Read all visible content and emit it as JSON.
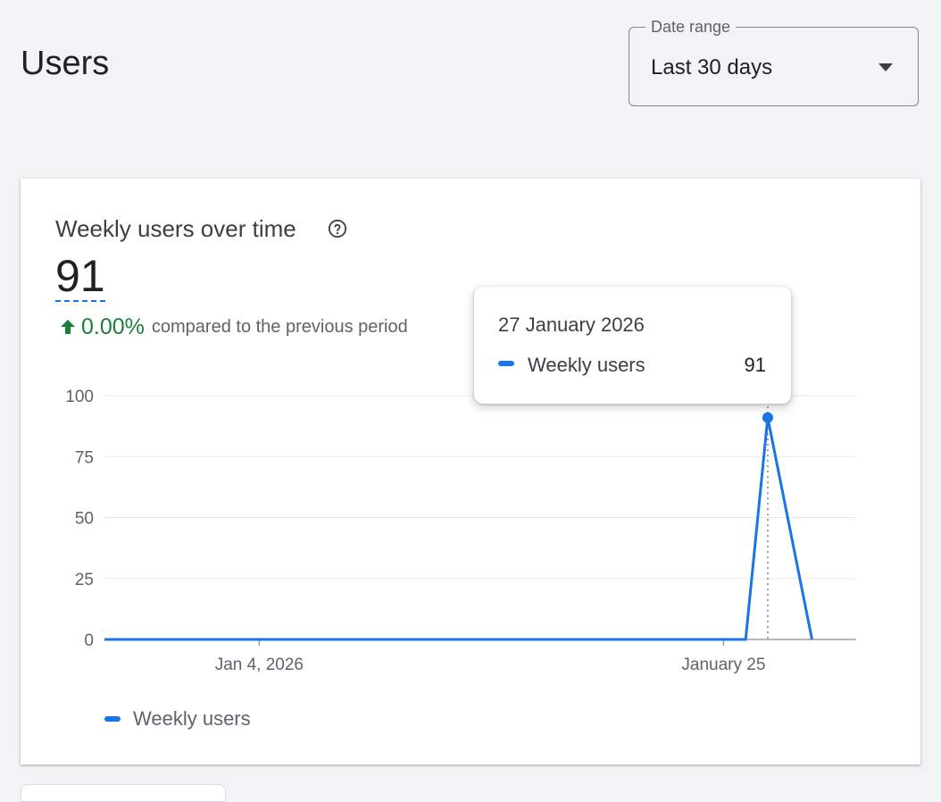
{
  "header": {
    "title": "Users"
  },
  "date_range": {
    "label": "Date range",
    "selected": "Last 30 days",
    "icon": "dropdown-arrow-icon"
  },
  "card": {
    "title": "Weekly users over time",
    "help_icon": "help-icon",
    "metric_value": "91",
    "change_value": "0.00%",
    "change_direction": "up",
    "comparison_text": "compared to the previous period",
    "colors": {
      "series": "#1a73e8",
      "positive": "#188038"
    }
  },
  "tooltip": {
    "date": "27 January 2026",
    "series_name": "Weekly users",
    "value": "91"
  },
  "legend": {
    "items": [
      "Weekly users"
    ]
  },
  "chart_data": {
    "type": "line",
    "title": "Weekly users over time",
    "xlabel": "",
    "ylabel": "",
    "ylim": [
      0,
      100
    ],
    "yticks": [
      0,
      25,
      50,
      75,
      100
    ],
    "x_domain": [
      "2025-12-28",
      "2026-01-31"
    ],
    "x_tick_labels": [
      {
        "date": "2026-01-04",
        "label": "Jan 4, 2026"
      },
      {
        "date": "2026-01-25",
        "label": "January 25"
      }
    ],
    "grid": true,
    "legend_position": "bottom-left",
    "highlight": {
      "date": "2026-01-27",
      "value": 91
    },
    "series": [
      {
        "name": "Weekly users",
        "color": "#1a73e8",
        "points": [
          {
            "date": "2025-12-28",
            "value": 0
          },
          {
            "date": "2026-01-24",
            "value": 0
          },
          {
            "date": "2026-01-26",
            "value": 0
          },
          {
            "date": "2026-01-27",
            "value": 91
          },
          {
            "date": "2026-01-29",
            "value": 0
          }
        ]
      }
    ]
  }
}
